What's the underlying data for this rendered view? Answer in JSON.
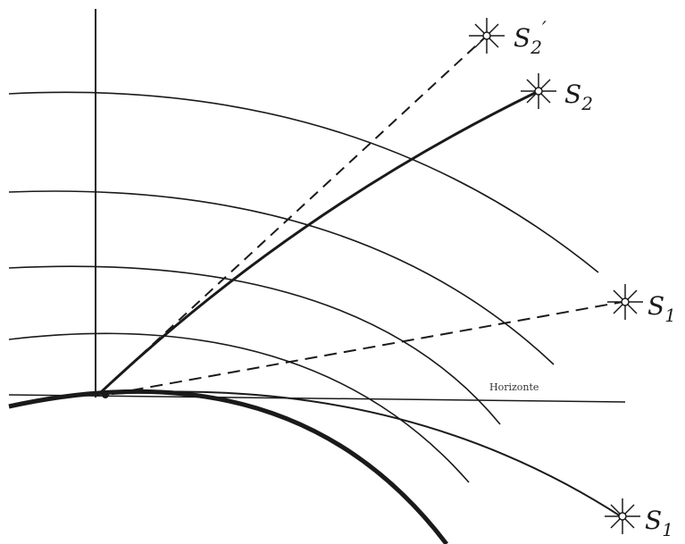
{
  "labels": {
    "horizon": "Horizonte",
    "star_s2_apparent": "S",
    "star_s2_apparent_sub": "2",
    "star_s2_apparent_prime": "′",
    "star_s2": "S",
    "star_s2_sub": "2",
    "star_s1_upper": "S",
    "star_s1_upper_sub": "1",
    "star_s1_lower": "S",
    "star_s1_lower_sub": "1"
  },
  "colors": {
    "ink": "#1a1a1a",
    "background": "#ffffff"
  },
  "icons": {
    "star": "star-burst-icon"
  }
}
